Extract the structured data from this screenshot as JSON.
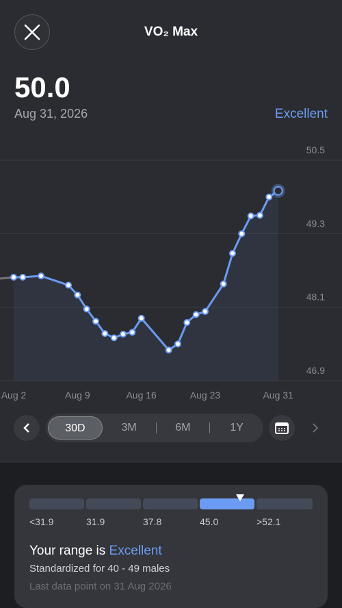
{
  "header": {
    "title": "VO₂ Max"
  },
  "summary": {
    "value": "50.0",
    "date": "Aug 31, 2026",
    "rating": "Excellent"
  },
  "chart_data": {
    "type": "line",
    "x": [
      2,
      3,
      5,
      8,
      9,
      10,
      11,
      12,
      13,
      14,
      15,
      16,
      19,
      20,
      21,
      22,
      23,
      25,
      26,
      27,
      28,
      29,
      30,
      31
    ],
    "values": [
      48.59,
      48.59,
      48.61,
      48.46,
      48.3,
      48.07,
      47.87,
      47.67,
      47.6,
      47.66,
      47.69,
      47.92,
      47.4,
      47.5,
      47.85,
      47.98,
      48.03,
      48.48,
      48.98,
      49.3,
      49.59,
      49.6,
      49.9,
      50.0
    ],
    "color": "#6b9bf2",
    "xlim": [
      0.5,
      38
    ],
    "xticks": [
      {
        "value": 2,
        "label": "Aug 2"
      },
      {
        "value": 9,
        "label": "Aug 9"
      },
      {
        "value": 16,
        "label": "Aug 16"
      },
      {
        "value": 23,
        "label": "Aug 23"
      },
      {
        "value": 31,
        "label": "Aug 31"
      }
    ],
    "ylim": [
      46.9,
      50.5
    ],
    "yticks": [
      50.5,
      49.3,
      48.1,
      46.9
    ],
    "grid": true
  },
  "tabs": [
    "30D",
    "3M",
    "6M",
    "1Y"
  ],
  "range": {
    "labels": [
      "<31.9",
      "31.9",
      "37.8",
      "45.0",
      ">52.1"
    ],
    "prefix": "Your range is",
    "rating": "Excellent",
    "note": "Standardized for 40 - 49 males",
    "last": "Last data point on 31 Aug 2026"
  }
}
